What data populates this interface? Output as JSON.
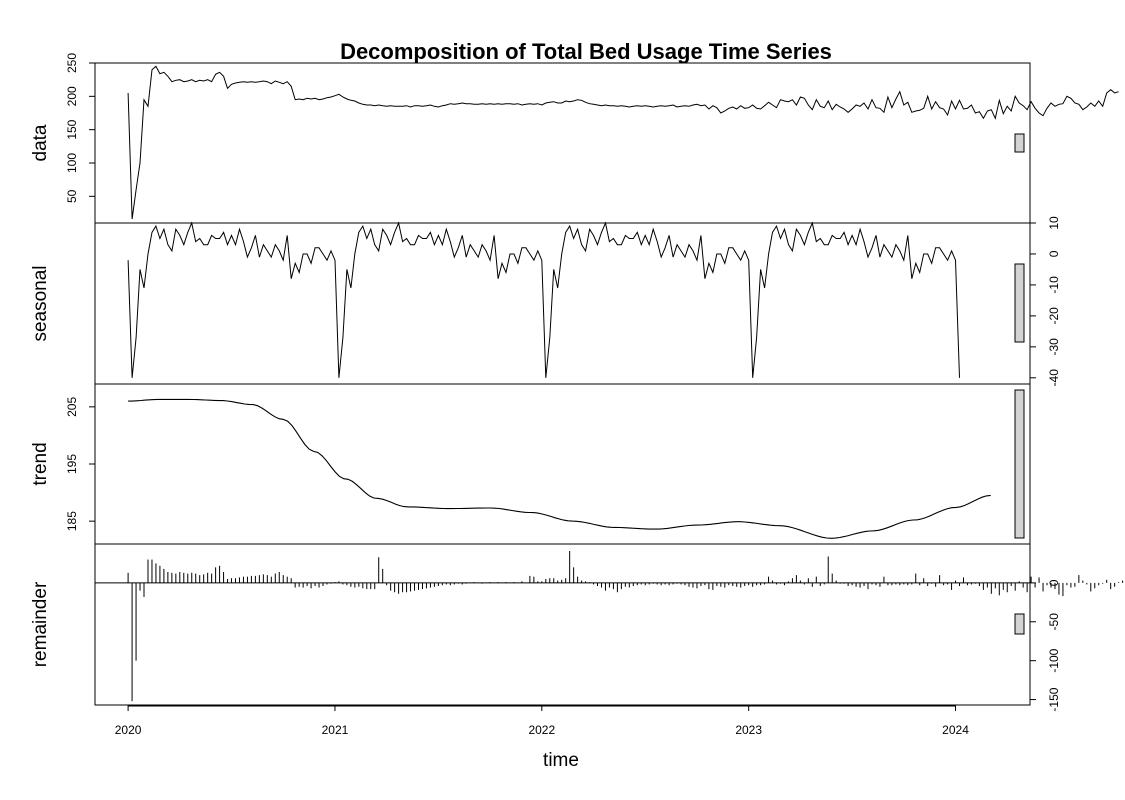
{
  "chart_data": {
    "type": "line",
    "title": "Decomposition of Total Bed Usage Time Series",
    "xlabel": "time",
    "x_ticks": [
      "2020",
      "2021",
      "2022",
      "2023",
      "2024"
    ],
    "x_start": 2020.0,
    "x_end": 2024.17,
    "points_per_year": 52,
    "panels": [
      {
        "name": "data",
        "ylim": [
          10,
          250
        ],
        "y_ticks": [
          "50",
          "100",
          "150",
          "200",
          "250"
        ],
        "tick_side": "left",
        "values": [
          205,
          16,
          60,
          100,
          195,
          185,
          240,
          245,
          234,
          236,
          230,
          222,
          224,
          225,
          222,
          223,
          225,
          222,
          224,
          223,
          225,
          222,
          233,
          236,
          230,
          212,
          218,
          220,
          221,
          222,
          221,
          222,
          221,
          222,
          223,
          222,
          219,
          223,
          221,
          219,
          222,
          215,
          195,
          196,
          195,
          197,
          196,
          197,
          195,
          196,
          198,
          199,
          201,
          203,
          199,
          196,
          194,
          193,
          190,
          188,
          187,
          187,
          186,
          187,
          186,
          185,
          186,
          185,
          185,
          185,
          186,
          184,
          186,
          186,
          185,
          186,
          187,
          185,
          184,
          186,
          187,
          189,
          188,
          189,
          190,
          189,
          189,
          188,
          188,
          189,
          188,
          189,
          188,
          189,
          188,
          189,
          189,
          188,
          189,
          187,
          188,
          189,
          188,
          189,
          187,
          190,
          191,
          192,
          190,
          190,
          193,
          192,
          193,
          195,
          194,
          191,
          189,
          188,
          187,
          186,
          187,
          186,
          186,
          185,
          186,
          185,
          184,
          185,
          186,
          185,
          186,
          185,
          184,
          185,
          186,
          185,
          186,
          187,
          184,
          185,
          186,
          185,
          187,
          188,
          186,
          187,
          181,
          186,
          183,
          175,
          178,
          182,
          184,
          181,
          186,
          182,
          183,
          187,
          182,
          181,
          186,
          191,
          187,
          183,
          195,
          193,
          192,
          195,
          187,
          199,
          197,
          187,
          180,
          195,
          185,
          183,
          193,
          180,
          188,
          184,
          181,
          176,
          181,
          187,
          185,
          190,
          181,
          195,
          183,
          182,
          176,
          199,
          183,
          196,
          207,
          187,
          191,
          176,
          178,
          179,
          182,
          200,
          181,
          192,
          183,
          181,
          172,
          193,
          181,
          194,
          181,
          182,
          187,
          175,
          177,
          167,
          178,
          180,
          167,
          194,
          174,
          185,
          178,
          200,
          190,
          186,
          180,
          192,
          182,
          175,
          171,
          182,
          190,
          185,
          188,
          189,
          200,
          197,
          190,
          188,
          180,
          184,
          190,
          185,
          193,
          185,
          205,
          210,
          205,
          207
        ]
      },
      {
        "name": "seasonal",
        "ylim": [
          -42,
          10
        ],
        "y_ticks": [
          "-40",
          "-30",
          "-20",
          "-10",
          "0",
          "10"
        ],
        "tick_side": "right",
        "seasonal_one_year": [
          -2,
          -40,
          -27,
          -5,
          -11,
          0,
          7,
          9,
          5,
          8,
          3,
          1,
          8,
          6,
          3,
          7,
          10,
          4,
          5,
          3,
          3,
          6,
          5,
          5,
          7,
          3,
          6,
          3,
          8,
          4,
          -1,
          2,
          6,
          -1,
          3,
          1,
          -1,
          3,
          1,
          -2,
          6,
          -8,
          -3,
          -6,
          0,
          0,
          -3,
          2,
          2,
          0,
          -2,
          1,
          0,
          -3,
          0,
          2,
          -1,
          0,
          3,
          0,
          -2,
          0
        ],
        "seasonal_repeat_count": 210
      },
      {
        "name": "trend",
        "ylim": [
          181,
          209
        ],
        "y_ticks": [
          "185",
          "195",
          "205"
        ],
        "tick_side": "left",
        "knots_x": [
          2020.0,
          2020.15,
          2020.3,
          2020.45,
          2020.6,
          2020.75,
          2020.9,
          2021.05,
          2021.2,
          2021.35,
          2021.55,
          2021.75,
          2021.95,
          2022.15,
          2022.35,
          2022.55,
          2022.75,
          2022.95,
          2023.15,
          2023.4,
          2023.6,
          2023.8,
          2024.0,
          2024.17
        ],
        "knots_y": [
          206.0,
          206.3,
          206.3,
          206.1,
          205.4,
          202.8,
          197.2,
          192.4,
          189.0,
          187.5,
          187.2,
          187.3,
          186.5,
          185.0,
          183.9,
          183.6,
          184.3,
          184.9,
          184.2,
          182.0,
          183.3,
          185.2,
          187.4,
          189.5
        ]
      },
      {
        "name": "remainder",
        "ylim": [
          -157,
          50
        ],
        "y_ticks": [
          "-150",
          "-100",
          "-50",
          "0"
        ],
        "tick_side": "right",
        "values": [
          13,
          -152,
          -100,
          -10,
          -18,
          30,
          30,
          25,
          22,
          18,
          14,
          13,
          12,
          14,
          13,
          12,
          13,
          12,
          10,
          11,
          13,
          12,
          20,
          22,
          14,
          5,
          6,
          6,
          7,
          8,
          8,
          9,
          9,
          10,
          11,
          10,
          8,
          12,
          14,
          10,
          8,
          6,
          -6,
          -5,
          -6,
          -4,
          -7,
          -4,
          -6,
          -4,
          -2,
          -1,
          1,
          2,
          -2,
          -3,
          -5,
          -6,
          -5,
          -7,
          -8,
          -8,
          -8,
          33,
          18,
          -3,
          -10,
          -12,
          -14,
          -12,
          -12,
          -11,
          -10,
          -9,
          -8,
          -7,
          -6,
          -5,
          -4,
          -3,
          -2,
          -3,
          -2,
          -1,
          -2,
          -1,
          0,
          1,
          0,
          -1,
          0,
          1,
          0,
          1,
          0,
          1,
          0,
          1,
          0,
          2,
          0,
          9,
          8,
          2,
          2,
          5,
          6,
          6,
          3,
          4,
          6,
          41,
          20,
          8,
          3,
          2,
          1,
          -2,
          -4,
          -6,
          -10,
          -6,
          -8,
          -12,
          -8,
          -5,
          -6,
          -4,
          -3,
          -2,
          -3,
          -2,
          -1,
          -2,
          -3,
          -2,
          -3,
          -2,
          -1,
          -2,
          -3,
          -5,
          -6,
          -7,
          -4,
          -3,
          -8,
          -9,
          -4,
          -5,
          -6,
          -3,
          -4,
          -5,
          -6,
          -4,
          -3,
          -5,
          -3,
          -3,
          -2,
          8,
          3,
          -2,
          -1,
          -3,
          2,
          6,
          10,
          3,
          -2,
          6,
          -5,
          8,
          -4,
          -2,
          34,
          12,
          3,
          -1,
          -1,
          -4,
          -3,
          -5,
          -6,
          -4,
          -8,
          -2,
          -3,
          -5,
          8,
          -3,
          -3,
          -2,
          -3,
          -2,
          -3,
          -2,
          12,
          -3,
          6,
          -4,
          -1,
          -5,
          10,
          -3,
          -2,
          -9,
          3,
          -4,
          7,
          -3,
          -2,
          -1,
          -4,
          -9,
          -6,
          -14,
          -7,
          -16,
          -9,
          -12,
          -4,
          -10,
          2,
          -6,
          -12,
          8,
          -6,
          7,
          -11,
          -3,
          -6,
          -8,
          -15,
          -17,
          -3,
          -6,
          -5,
          10,
          3,
          -2,
          -11,
          -7,
          -3,
          -1,
          4,
          -8,
          -5,
          1,
          3,
          -1,
          5,
          3,
          -3,
          6,
          -8,
          3,
          -6,
          -3,
          -4,
          -7,
          -8,
          -3,
          34,
          7,
          6,
          3,
          -2,
          -7,
          -5,
          -9,
          -2,
          9,
          8
        ]
      }
    ],
    "scale_bars": "right"
  }
}
